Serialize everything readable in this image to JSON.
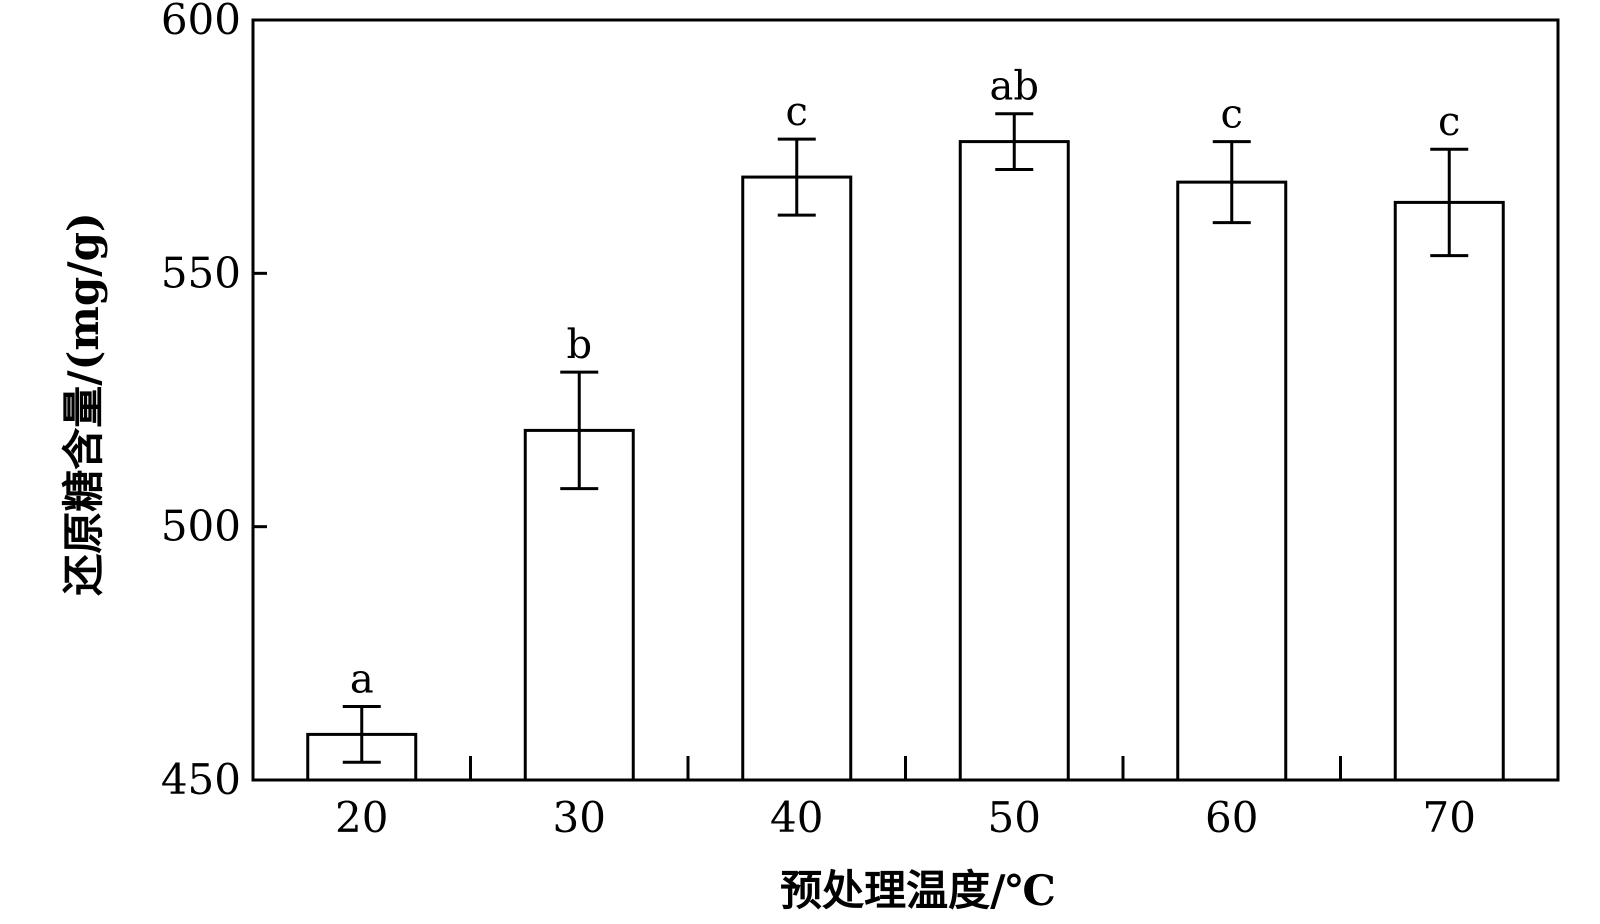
{
  "chart_data": {
    "type": "bar",
    "xlabel": "预处理温度/℃",
    "ylabel": "还原糖含量/(mg/g)",
    "ylim": [
      450,
      600
    ],
    "yticks": [
      450,
      500,
      550,
      600
    ],
    "categories": [
      "20",
      "30",
      "40",
      "50",
      "60",
      "70"
    ],
    "values": [
      459,
      519,
      569,
      576,
      568,
      564
    ],
    "errors": [
      5.5,
      11.5,
      7.5,
      5.5,
      8,
      10.5
    ],
    "significance": [
      "a",
      "b",
      "c",
      "ab",
      "c",
      "c"
    ],
    "grid": false,
    "legend": "none"
  },
  "colors": {
    "bar_fill": "#ffffff",
    "stroke": "#000000"
  }
}
